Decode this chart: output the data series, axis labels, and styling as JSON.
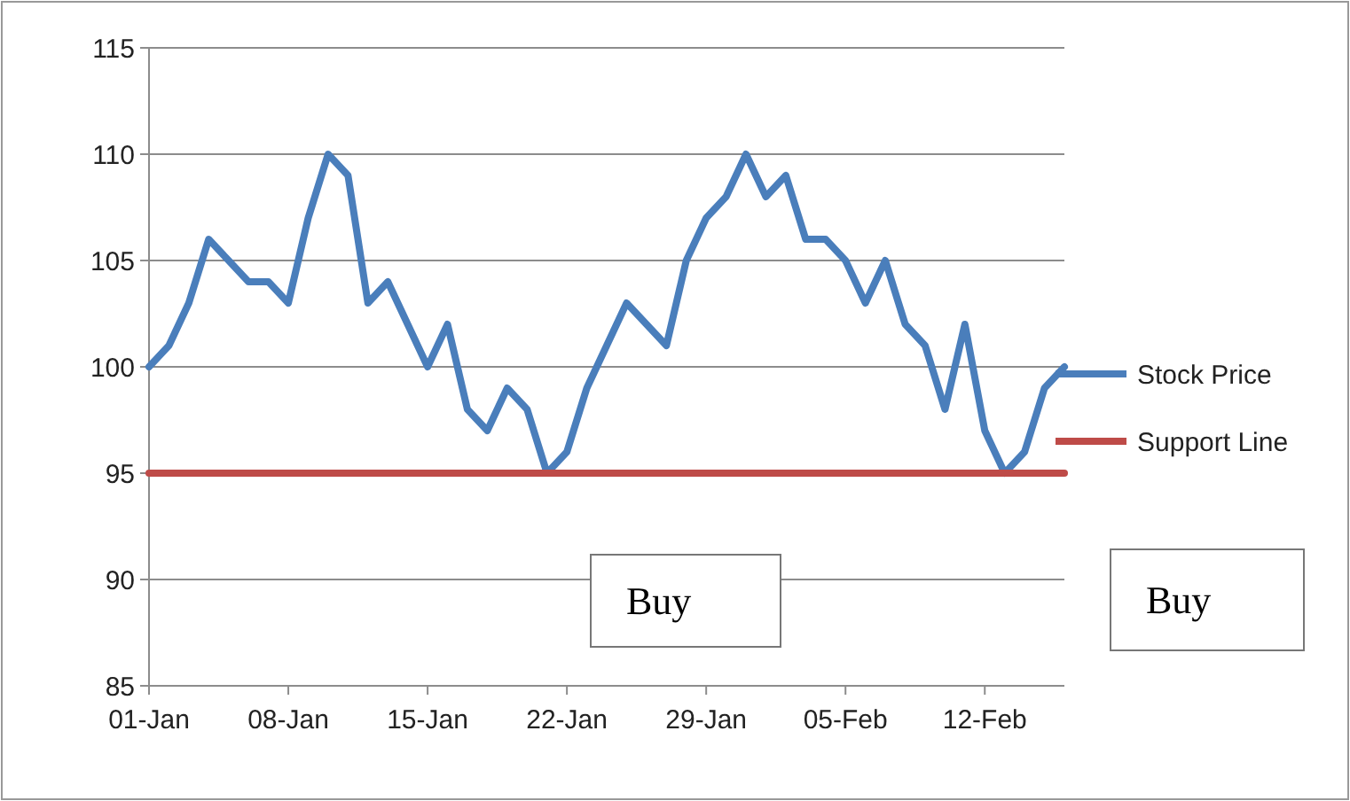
{
  "chart_data": {
    "type": "line",
    "x": [
      "--01-01",
      "--01-02",
      "--01-03",
      "--01-04",
      "--01-05",
      "--01-06",
      "--01-07",
      "--01-08",
      "--01-09",
      "--01-10",
      "--01-11",
      "--01-12",
      "--01-13",
      "--01-14",
      "--01-15",
      "--01-16",
      "--01-17",
      "--01-18",
      "--01-19",
      "--01-20",
      "--01-21",
      "--01-22",
      "--01-23",
      "--01-24",
      "--01-25",
      "--01-26",
      "--01-27",
      "--01-28",
      "--01-29",
      "--01-30",
      "--01-31",
      "--02-01",
      "--02-02",
      "--02-03",
      "--02-04",
      "--02-05",
      "--02-06",
      "--02-07",
      "--02-08",
      "--02-09",
      "--02-10",
      "--02-11",
      "--02-12",
      "--02-13",
      "--02-14",
      "--02-15",
      "--02-16"
    ],
    "series": [
      {
        "name": "Stock Price",
        "color": "#4a7ebb",
        "values": [
          100,
          101,
          103,
          106,
          105,
          104,
          104,
          103,
          107,
          110,
          109,
          103,
          104,
          102,
          100,
          102,
          98,
          97,
          99,
          98,
          95,
          96,
          99,
          101,
          103,
          102,
          101,
          105,
          107,
          108,
          110,
          108,
          109,
          106,
          106,
          105,
          103,
          105,
          102,
          101,
          98,
          102,
          97,
          95,
          96,
          99,
          100
        ]
      },
      {
        "name": "Support Line",
        "color": "#be4b48",
        "values": [
          95,
          95,
          95,
          95,
          95,
          95,
          95,
          95,
          95,
          95,
          95,
          95,
          95,
          95,
          95,
          95,
          95,
          95,
          95,
          95,
          95,
          95,
          95,
          95,
          95,
          95,
          95,
          95,
          95,
          95,
          95,
          95,
          95,
          95,
          95,
          95,
          95,
          95,
          95,
          95,
          95,
          95,
          95,
          95,
          95,
          95,
          95
        ]
      }
    ],
    "xlim": [
      "--01-01",
      "--02-16"
    ],
    "xticks": [
      {
        "value": "--01-01",
        "label": "01-Jan"
      },
      {
        "value": "--01-08",
        "label": "08-Jan"
      },
      {
        "value": "--01-15",
        "label": "15-Jan"
      },
      {
        "value": "--01-22",
        "label": "22-Jan"
      },
      {
        "value": "--01-29",
        "label": "29-Jan"
      },
      {
        "value": "--02-05",
        "label": "05-Feb"
      },
      {
        "value": "--02-12",
        "label": "12-Feb"
      }
    ],
    "ylim": [
      85,
      115
    ],
    "yticks": [
      85,
      90,
      95,
      100,
      105,
      110,
      115
    ],
    "grid": "y",
    "legend": "right",
    "marker": "none",
    "line_style": "solid",
    "annotations": [
      "Buy",
      "Buy"
    ]
  }
}
